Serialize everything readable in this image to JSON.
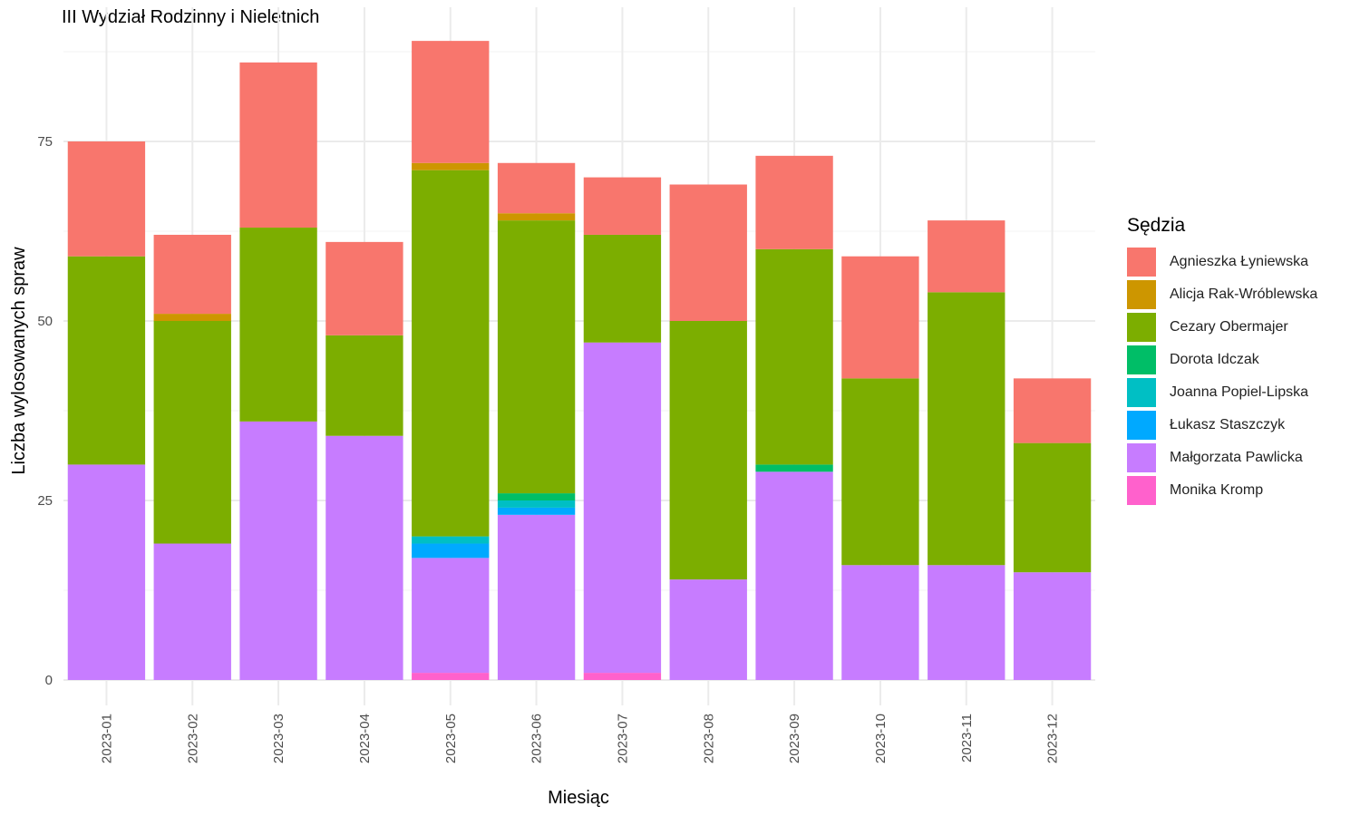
{
  "chart_data": {
    "type": "bar",
    "stacked": true,
    "title": "III Wydział Rodzinny i Nieletnich",
    "xlabel": "Miesiąc",
    "ylabel": "Liczba wylosowanych spraw",
    "ylim": [
      0,
      90
    ],
    "yticks": [
      0,
      25,
      50,
      75
    ],
    "grid": true,
    "legend_title": "Sędzia",
    "legend_position": "right",
    "categories": [
      "2023-01",
      "2023-02",
      "2023-03",
      "2023-04",
      "2023-05",
      "2023-06",
      "2023-07",
      "2023-08",
      "2023-09",
      "2023-10",
      "2023-11",
      "2023-12"
    ],
    "series": [
      {
        "name": "Agnieszka Łyniewska",
        "color": "#F8766D",
        "values": [
          16,
          11,
          23,
          13,
          17,
          7,
          8,
          19,
          13,
          17,
          10,
          9
        ]
      },
      {
        "name": "Alicja Rak-Wróblewska",
        "color": "#CD9600",
        "values": [
          0,
          1,
          0,
          0,
          1,
          1,
          0,
          0,
          0,
          0,
          0,
          0
        ]
      },
      {
        "name": "Cezary Obermajer",
        "color": "#7CAE00",
        "values": [
          29,
          31,
          27,
          14,
          51,
          38,
          15,
          36,
          30,
          26,
          38,
          18
        ]
      },
      {
        "name": "Dorota Idczak",
        "color": "#00BE67",
        "values": [
          0,
          0,
          0,
          0,
          0,
          1,
          0,
          0,
          1,
          0,
          0,
          0
        ]
      },
      {
        "name": "Joanna Popiel-Lipska",
        "color": "#00BFC4",
        "values": [
          0,
          0,
          0,
          0,
          1,
          1,
          0,
          0,
          0,
          0,
          0,
          0
        ]
      },
      {
        "name": "Łukasz Staszczyk",
        "color": "#00A9FF",
        "values": [
          0,
          0,
          0,
          0,
          2,
          1,
          0,
          0,
          0,
          0,
          0,
          0
        ]
      },
      {
        "name": "Małgorzata Pawlicka",
        "color": "#C77CFF",
        "values": [
          30,
          19,
          36,
          34,
          16,
          23,
          46,
          14,
          29,
          16,
          16,
          15
        ]
      },
      {
        "name": "Monika Kromp",
        "color": "#FF61CC",
        "values": [
          0,
          0,
          0,
          0,
          1,
          0,
          1,
          0,
          0,
          0,
          0,
          0
        ]
      }
    ]
  }
}
